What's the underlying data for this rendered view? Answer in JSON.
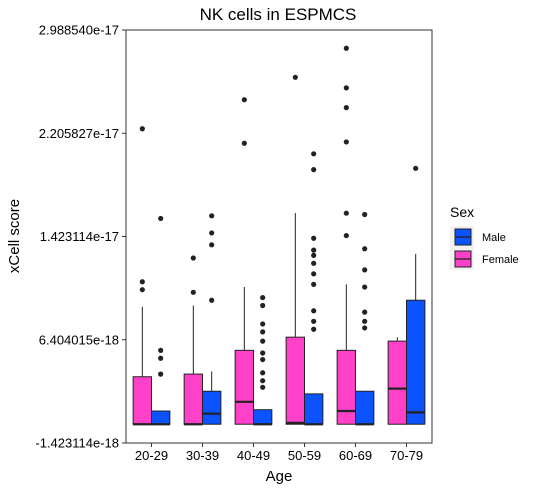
{
  "chart_data": {
    "type": "boxplot",
    "title": "NK cells in ESPMCS",
    "xlabel": "Age",
    "ylabel": "xCell score",
    "categories": [
      "20-29",
      "30-39",
      "40-49",
      "50-59",
      "60-69",
      "70-79"
    ],
    "yticks": [
      "-1.423114e-18",
      "6.404015e-18",
      "1.423114e-17",
      "2.205827e-17",
      "2.988540e-17"
    ],
    "ylim": [
      -1.423114e-18,
      2.98854e-17
    ],
    "grid": false,
    "legend": {
      "title": "Sex",
      "position": "right",
      "items": [
        {
          "label": "Male",
          "color": "#0A53FF"
        },
        {
          "label": "Female",
          "color": "#FF40C8"
        }
      ]
    },
    "series": [
      {
        "color": "#FF40C8",
        "boxes": [
          {
            "min": 0.0,
            "q1": 0.0,
            "median": 0.0,
            "q3": 3.6e-18,
            "max": 8.9e-18,
            "outliers": [
              1.02e-17,
              1.08e-17,
              2.24e-17
            ]
          },
          {
            "min": 0.0,
            "q1": 0.0,
            "median": 0.0,
            "q3": 3.8e-18,
            "max": 9e-18,
            "outliers": [
              1e-17,
              1.26e-17
            ]
          },
          {
            "min": 0.0,
            "q1": 0.0,
            "median": 1.7e-18,
            "q3": 5.6e-18,
            "max": 1.04e-17,
            "outliers": [
              2.13e-17,
              2.46e-17
            ]
          },
          {
            "min": 0.0,
            "q1": 0.0,
            "median": 1e-19,
            "q3": 6.6e-18,
            "max": 1.6e-17,
            "outliers": [
              2.63e-17
            ]
          },
          {
            "min": 0.0,
            "q1": 0.0,
            "median": 1e-18,
            "q3": 5.6e-18,
            "max": 1.06e-17,
            "outliers": [
              1.43e-17,
              1.6e-17,
              2.14e-17,
              2.4e-17,
              2.55e-17,
              2.85e-17
            ]
          },
          {
            "min": 0.0,
            "q1": 0.0,
            "median": 2.7e-18,
            "q3": 6.3e-18,
            "max": 6.6e-18,
            "outliers": []
          }
        ]
      },
      {
        "color": "#0A53FF",
        "boxes": [
          {
            "min": 0.0,
            "q1": 0.0,
            "median": 0.0,
            "q3": 1e-18,
            "max": 1e-18,
            "outliers": [
              3.8e-18,
              5e-18,
              5.6e-18,
              1.56e-17
            ]
          },
          {
            "min": 0.0,
            "q1": 0.0,
            "median": 8e-19,
            "q3": 2.5e-18,
            "max": 4e-18,
            "outliers": [
              9.4e-18,
              1.36e-17,
              1.45e-17,
              1.58e-17
            ]
          },
          {
            "min": 0.0,
            "q1": 0.0,
            "median": 0.0,
            "q3": 1.1e-18,
            "max": 1.1e-18,
            "outliers": [
              2.8e-18,
              3.3e-18,
              3.9e-18,
              4.9e-18,
              5.4e-18,
              6.3e-18,
              7e-18,
              7.6e-18,
              9e-18,
              9.6e-18
            ]
          },
          {
            "min": 0.0,
            "q1": 0.0,
            "median": 0.0,
            "q3": 2.3e-18,
            "max": 2.3e-18,
            "outliers": [
              7.2e-18,
              7.8e-18,
              8.6e-18,
              1.06e-17,
              1.14e-17,
              1.22e-17,
              1.28e-17,
              1.32e-17,
              1.41e-17,
              1.93e-17,
              2.05e-17
            ]
          },
          {
            "min": 0.0,
            "q1": 0.0,
            "median": 0.0,
            "q3": 2.5e-18,
            "max": 2.5e-18,
            "outliers": [
              7.3e-18,
              7.8e-18,
              8.5e-18,
              1.04e-17,
              1.17e-17,
              1.33e-17,
              1.59e-17
            ]
          },
          {
            "min": 0.0,
            "q1": 0.0,
            "median": 9e-19,
            "q3": 9.4e-18,
            "max": 1.29e-17,
            "outliers": [
              1.94e-17
            ]
          }
        ]
      }
    ]
  }
}
